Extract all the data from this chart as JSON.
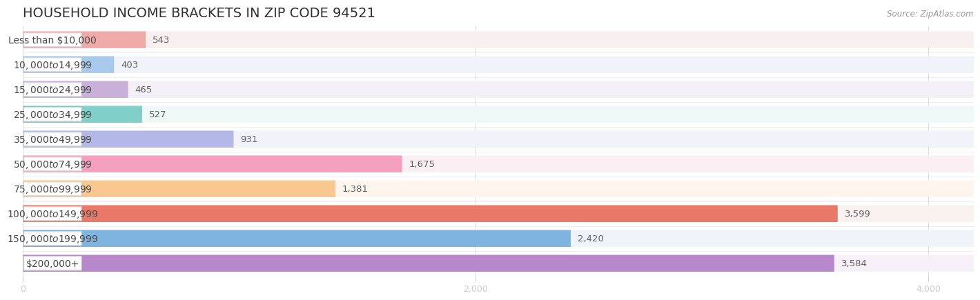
{
  "title": "HOUSEHOLD INCOME BRACKETS IN ZIP CODE 94521",
  "source": "Source: ZipAtlas.com",
  "categories": [
    "Less than $10,000",
    "$10,000 to $14,999",
    "$15,000 to $24,999",
    "$25,000 to $34,999",
    "$35,000 to $49,999",
    "$50,000 to $74,999",
    "$75,000 to $99,999",
    "$100,000 to $149,999",
    "$150,000 to $199,999",
    "$200,000+"
  ],
  "values": [
    543,
    403,
    465,
    527,
    931,
    1675,
    1381,
    3599,
    2420,
    3584
  ],
  "bar_colors": [
    "#f0aaaa",
    "#a8c8ec",
    "#c8b0d8",
    "#80cfc8",
    "#b4b8e8",
    "#f5a0be",
    "#f8c890",
    "#e87868",
    "#80b4e0",
    "#b888cc"
  ],
  "row_bg_colors": [
    "#f8f0f0",
    "#f0f4fa",
    "#f4f0f8",
    "#eef8f6",
    "#f2f2fa",
    "#faf0f4",
    "#fef6ee",
    "#faf2f0",
    "#eef4fa",
    "#f6f0f8"
  ],
  "xlim_max": 4200,
  "xticks": [
    0,
    2000,
    4000
  ],
  "background_color": "#ffffff",
  "title_fontsize": 14,
  "label_fontsize": 10,
  "value_fontsize": 9.5
}
